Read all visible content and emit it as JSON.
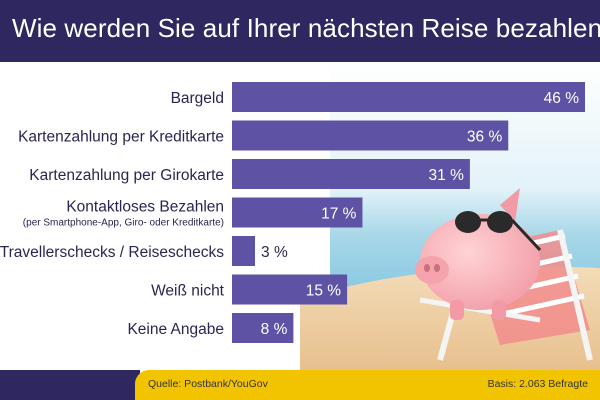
{
  "title": "Wie werden Sie auf Ihrer nächsten Reise bezahlen?",
  "footer": {
    "source": "Quelle: Postbank/YouGov",
    "basis": "Basis: 2.063 Befragte"
  },
  "colors": {
    "header": "#2f2860",
    "bar": "#5d52a3",
    "footer_bar": "#f2c400"
  },
  "chart_data": {
    "type": "bar",
    "orientation": "horizontal",
    "categories": [
      "Bargeld",
      "Kartenzahlung per Kreditkarte",
      "Kartenzahlung per Girokarte",
      "Kontaktloses Bezahlen",
      "Travellerschecks / Reiseschecks",
      "Weiß nicht",
      "Keine Angabe"
    ],
    "category_sublabels": [
      "",
      "",
      "",
      "(per Smartphone-App, Giro- oder Kreditkarte)",
      "",
      "",
      ""
    ],
    "values": [
      46,
      36,
      31,
      17,
      3,
      15,
      8
    ],
    "value_labels": [
      "46 %",
      "36 %",
      "31 %",
      "17 %",
      "3 %",
      "15 %",
      "8 %"
    ],
    "xlim": [
      0,
      46
    ],
    "unit": "%"
  }
}
